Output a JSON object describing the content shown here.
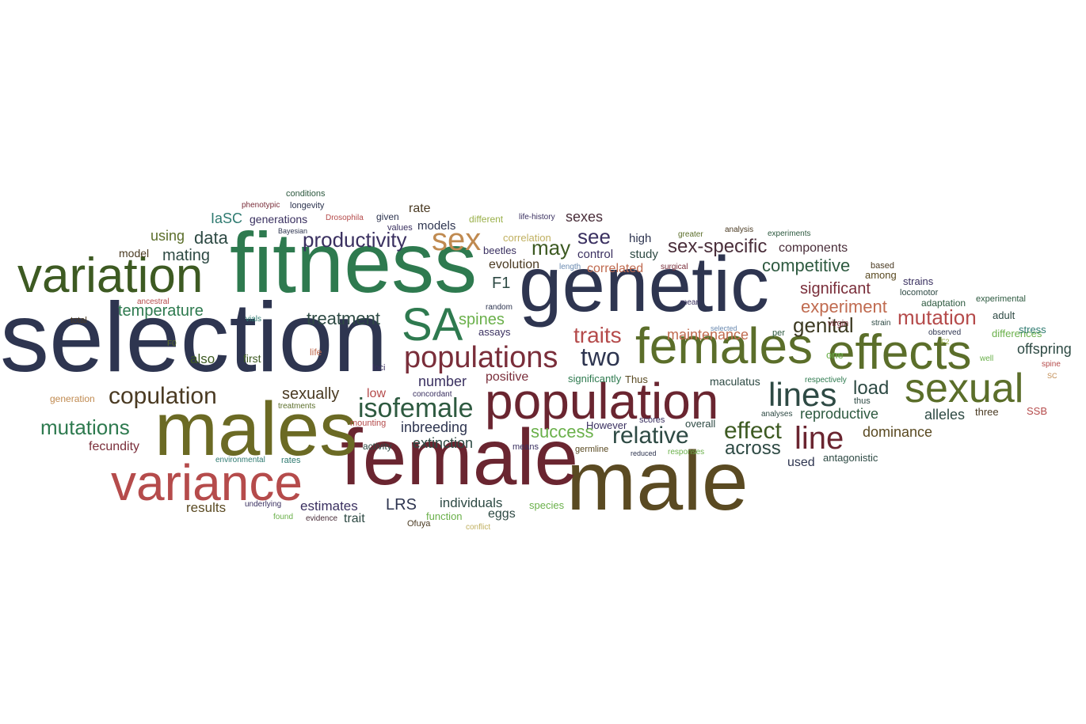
{
  "words": [
    {
      "text": "selection",
      "color": "#2e3550"
    },
    {
      "text": "genetic",
      "color": "#2e3550"
    },
    {
      "text": "fitness",
      "color": "#2e7a4f"
    },
    {
      "text": "male",
      "color": "#5a4a22"
    },
    {
      "text": "female",
      "color": "#6a2530"
    },
    {
      "text": "males",
      "color": "#6b6a24"
    },
    {
      "text": "variance",
      "color": "#b54b4b"
    },
    {
      "text": "variation",
      "color": "#3d5a22"
    },
    {
      "text": "population",
      "color": "#6a2530"
    },
    {
      "text": "females",
      "color": "#5b6e2a"
    },
    {
      "text": "effects",
      "color": "#5b6e2a"
    },
    {
      "text": "sexual",
      "color": "#5b6e2a"
    },
    {
      "text": "SA",
      "color": "#2e7a4f"
    },
    {
      "text": "sex",
      "color": "#c08a50"
    },
    {
      "text": "lines",
      "color": "#2e4a44"
    },
    {
      "text": "populations",
      "color": "#7a2e3a"
    },
    {
      "text": "isofemale",
      "color": "#2e5a40"
    },
    {
      "text": "copulation",
      "color": "#4a3a22"
    },
    {
      "text": "productivity",
      "color": "#3a3060"
    },
    {
      "text": "line",
      "color": "#6a2530"
    },
    {
      "text": "effect",
      "color": "#3d5a22"
    },
    {
      "text": "relative",
      "color": "#2e4a44"
    },
    {
      "text": "two",
      "color": "#2e3550"
    },
    {
      "text": "mutations",
      "color": "#2e7a4f"
    },
    {
      "text": "success",
      "color": "#6ab04a"
    },
    {
      "text": "across",
      "color": "#2e4a44"
    },
    {
      "text": "traits",
      "color": "#b54b4b"
    },
    {
      "text": "mutation",
      "color": "#b54b4b"
    },
    {
      "text": "genital",
      "color": "#3d3a22"
    },
    {
      "text": "sex-specific",
      "color": "#4a2e3a"
    },
    {
      "text": "see",
      "color": "#3a3060"
    },
    {
      "text": "may",
      "color": "#3d5a22"
    },
    {
      "text": "treatment",
      "color": "#2e4a44"
    },
    {
      "text": "temperature",
      "color": "#2e7a4f"
    },
    {
      "text": "data",
      "color": "#2e4a44"
    },
    {
      "text": "mating",
      "color": "#2e4a44"
    },
    {
      "text": "spines",
      "color": "#6ab04a"
    },
    {
      "text": "F1",
      "color": "#2e4a44"
    },
    {
      "text": "competitive",
      "color": "#2e5a40"
    },
    {
      "text": "experiment",
      "color": "#c06b50"
    },
    {
      "text": "significant",
      "color": "#7a2e3a"
    },
    {
      "text": "offspring",
      "color": "#2e4a44"
    },
    {
      "text": "maintenance",
      "color": "#c06b50"
    },
    {
      "text": "load",
      "color": "#2e4a44"
    },
    {
      "text": "reproductive",
      "color": "#2e5a40"
    },
    {
      "text": "dominance",
      "color": "#5a4a22"
    },
    {
      "text": "extinction",
      "color": "#2e4a44"
    },
    {
      "text": "inbreeding",
      "color": "#2e3550"
    },
    {
      "text": "number",
      "color": "#3a3060"
    },
    {
      "text": "alleles",
      "color": "#2e4a44"
    },
    {
      "text": "components",
      "color": "#4a2e3a"
    },
    {
      "text": "using",
      "color": "#5b6e2a"
    },
    {
      "text": "IaSC",
      "color": "#2e7a70"
    },
    {
      "text": "generations",
      "color": "#3a3060"
    },
    {
      "text": "rate",
      "color": "#4a3a22"
    },
    {
      "text": "models",
      "color": "#2e3550"
    },
    {
      "text": "sexes",
      "color": "#4a2e3a"
    },
    {
      "text": "model",
      "color": "#4a3a22"
    },
    {
      "text": "evolution",
      "color": "#4a3a22"
    },
    {
      "text": "control",
      "color": "#3a3060"
    },
    {
      "text": "correlated",
      "color": "#c06b50"
    },
    {
      "text": "study",
      "color": "#2e4a44"
    },
    {
      "text": "high",
      "color": "#2e3550"
    },
    {
      "text": "also",
      "color": "#3d5a22"
    },
    {
      "text": "first",
      "color": "#3d5a22"
    },
    {
      "text": "fecundity",
      "color": "#7a2e3a"
    },
    {
      "text": "results",
      "color": "#5a4a22"
    },
    {
      "text": "estimates",
      "color": "#3a3060"
    },
    {
      "text": "LRS",
      "color": "#2e3550"
    },
    {
      "text": "individuals",
      "color": "#2e4a44"
    },
    {
      "text": "sexually",
      "color": "#4a3a22"
    },
    {
      "text": "low",
      "color": "#b54b4b"
    },
    {
      "text": "positive",
      "color": "#7a2e3a"
    },
    {
      "text": "significantly",
      "color": "#2e7a4f"
    },
    {
      "text": "Thus",
      "color": "#5a4a22"
    },
    {
      "text": "used",
      "color": "#2e3550"
    },
    {
      "text": "However",
      "color": "#3a3060"
    },
    {
      "text": "overall",
      "color": "#2e4a44"
    },
    {
      "text": "maculatus",
      "color": "#2e4a44"
    },
    {
      "text": "assays",
      "color": "#3a3060"
    },
    {
      "text": "beetles",
      "color": "#3a3060"
    },
    {
      "text": "trait",
      "color": "#2e4a44"
    },
    {
      "text": "eggs",
      "color": "#2e4a44"
    },
    {
      "text": "function",
      "color": "#6ab04a"
    },
    {
      "text": "species",
      "color": "#6ab04a"
    },
    {
      "text": "antagonistic",
      "color": "#2e4a44"
    },
    {
      "text": "SSB",
      "color": "#b54b4b"
    },
    {
      "text": "three",
      "color": "#4a3a22"
    },
    {
      "text": "differences",
      "color": "#6ab04a"
    },
    {
      "text": "stress",
      "color": "#2e7a70"
    },
    {
      "text": "adult",
      "color": "#2e4a44"
    },
    {
      "text": "one",
      "color": "#6ab04a"
    },
    {
      "text": "adaptation",
      "color": "#2e5a40"
    },
    {
      "text": "strains",
      "color": "#3a3060"
    },
    {
      "text": "among",
      "color": "#5a4a22"
    },
    {
      "text": "locomotor",
      "color": "#2e4a44"
    },
    {
      "text": "experimental",
      "color": "#2e5a40"
    },
    {
      "text": "based",
      "color": "#4a3a22"
    },
    {
      "text": "conditions",
      "color": "#2e5a40"
    },
    {
      "text": "longevity",
      "color": "#2e3550"
    },
    {
      "text": "phenotypic",
      "color": "#7a2e3a"
    },
    {
      "text": "Bayesian",
      "color": "#2e3550"
    },
    {
      "text": "Drosophila",
      "color": "#b54b4b"
    },
    {
      "text": "given",
      "color": "#2e3550"
    },
    {
      "text": "values",
      "color": "#3a3060"
    },
    {
      "text": "different",
      "color": "#9ab04a"
    },
    {
      "text": "life-history",
      "color": "#3a3060"
    },
    {
      "text": "correlation",
      "color": "#c0b060"
    },
    {
      "text": "greater",
      "color": "#5b6e2a"
    },
    {
      "text": "analysis",
      "color": "#4a3a22"
    },
    {
      "text": "experiments",
      "color": "#2e5a40"
    },
    {
      "text": "length",
      "color": "#6a8ab0"
    },
    {
      "text": "surgical",
      "color": "#7a2e3a"
    },
    {
      "text": "mean",
      "color": "#3a3060"
    },
    {
      "text": "random",
      "color": "#2e3550"
    },
    {
      "text": "ancestral",
      "color": "#b54b4b"
    },
    {
      "text": "total",
      "color": "#4a3a22"
    },
    {
      "text": "vials",
      "color": "#2e7a70"
    },
    {
      "text": "F0",
      "color": "#5b6e2a"
    },
    {
      "text": "life",
      "color": "#c06b50"
    },
    {
      "text": "selected",
      "color": "#6a8ab0"
    },
    {
      "text": "per",
      "color": "#2e5a40"
    },
    {
      "text": "virgin",
      "color": "#7a2e3a"
    },
    {
      "text": "strain",
      "color": "#2e4a44"
    },
    {
      "text": "observed",
      "color": "#2e3550"
    },
    {
      "text": "F2",
      "color": "#9ab04a"
    },
    {
      "text": "well",
      "color": "#6ab04a"
    },
    {
      "text": "spine",
      "color": "#b54b4b"
    },
    {
      "text": "SC",
      "color": "#c08a50"
    },
    {
      "text": "thus",
      "color": "#2e4a44"
    },
    {
      "text": "respectively",
      "color": "#2e7a4f"
    },
    {
      "text": "analyses",
      "color": "#2e4a44"
    },
    {
      "text": "loci",
      "color": "#3a3060"
    },
    {
      "text": "concordant",
      "color": "#3a3060"
    },
    {
      "text": "generation",
      "color": "#c08a50"
    },
    {
      "text": "treatments",
      "color": "#5b6e2a"
    },
    {
      "text": "mounting",
      "color": "#b54b4b"
    },
    {
      "text": "activity",
      "color": "#2e4a44"
    },
    {
      "text": "means",
      "color": "#3a3060"
    },
    {
      "text": "scores",
      "color": "#3a3060"
    },
    {
      "text": "germline",
      "color": "#5a4a22"
    },
    {
      "text": "reduced",
      "color": "#2e3550"
    },
    {
      "text": "responses",
      "color": "#6ab04a"
    },
    {
      "text": "environmental",
      "color": "#2e7a70"
    },
    {
      "text": "rates",
      "color": "#2e7a70"
    },
    {
      "text": "underlying",
      "color": "#3a3060"
    },
    {
      "text": "found",
      "color": "#6ab04a"
    },
    {
      "text": "evidence",
      "color": "#4a2e3a"
    },
    {
      "text": "Ofuya",
      "color": "#4a3a22"
    },
    {
      "text": "conflict",
      "color": "#c0b060"
    }
  ]
}
